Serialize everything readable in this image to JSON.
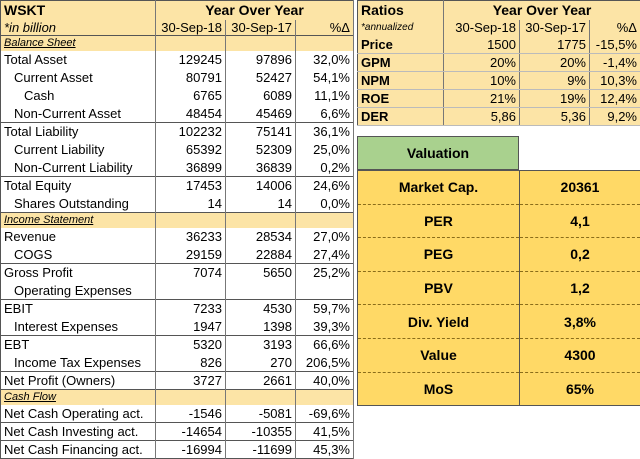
{
  "left": {
    "title": "WSKT",
    "yoy": "Year Over Year",
    "note": "*in billion",
    "col1": "30-Sep-18",
    "col2": "30-Sep-17",
    "col3": "%Δ",
    "sections": [
      {
        "heading": "Balance Sheet",
        "rows": [
          {
            "label": "Total Asset",
            "indent": 0,
            "v1": "129245",
            "v2": "97896",
            "pct": "32,0%"
          },
          {
            "label": "Current Asset",
            "indent": 1,
            "v1": "80791",
            "v2": "52427",
            "pct": "54,1%"
          },
          {
            "label": "Cash",
            "indent": 2,
            "v1": "6765",
            "v2": "6089",
            "pct": "11,1%"
          },
          {
            "label": "Non-Current Asset",
            "indent": 1,
            "v1": "48454",
            "v2": "45469",
            "pct": "6,6%"
          },
          {
            "label": "Total Liability",
            "indent": 0,
            "v1": "102232",
            "v2": "75141",
            "pct": "36,1%"
          },
          {
            "label": "Current Liability",
            "indent": 1,
            "v1": "65392",
            "v2": "52309",
            "pct": "25,0%"
          },
          {
            "label": "Non-Current Liability",
            "indent": 1,
            "v1": "36899",
            "v2": "36839",
            "pct": "0,2%"
          },
          {
            "label": "Total Equity",
            "indent": 0,
            "v1": "17453",
            "v2": "14006",
            "pct": "24,6%"
          },
          {
            "label": "Shares Outstanding",
            "indent": 1,
            "v1": "14",
            "v2": "14",
            "pct": "0,0%"
          }
        ]
      },
      {
        "heading": "Income Statement",
        "rows": [
          {
            "label": "Revenue",
            "indent": 0,
            "v1": "36233",
            "v2": "28534",
            "pct": "27,0%"
          },
          {
            "label": "COGS",
            "indent": 1,
            "v1": "29159",
            "v2": "22884",
            "pct": "27,4%"
          },
          {
            "label": "Gross Profit",
            "indent": 0,
            "v1": "7074",
            "v2": "5650",
            "pct": "25,2%"
          },
          {
            "label": "Operating Expenses",
            "indent": 1,
            "v1": "",
            "v2": "",
            "pct": ""
          },
          {
            "label": "EBIT",
            "indent": 0,
            "v1": "7233",
            "v2": "4530",
            "pct": "59,7%"
          },
          {
            "label": "Interest Expenses",
            "indent": 1,
            "v1": "1947",
            "v2": "1398",
            "pct": "39,3%"
          },
          {
            "label": "EBT",
            "indent": 0,
            "v1": "5320",
            "v2": "3193",
            "pct": "66,6%"
          },
          {
            "label": "Income Tax Expenses",
            "indent": 1,
            "v1": "826",
            "v2": "270",
            "pct": "206,5%"
          },
          {
            "label": "Net Profit (Owners)",
            "indent": 0,
            "v1": "3727",
            "v2": "2661",
            "pct": "40,0%"
          }
        ]
      },
      {
        "heading": "Cash Flow",
        "rows": [
          {
            "label": "Net Cash Operating act.",
            "indent": 0,
            "v1": "-1546",
            "v2": "-5081",
            "pct": "-69,6%"
          },
          {
            "label": "Net Cash Investing act.",
            "indent": 0,
            "v1": "-14654",
            "v2": "-10355",
            "pct": "41,5%"
          },
          {
            "label": "Net Cash Financing act.",
            "indent": 0,
            "v1": "-16994",
            "v2": "-11699",
            "pct": "45,3%"
          }
        ]
      }
    ]
  },
  "ratios": {
    "title": "Ratios",
    "yoy": "Year Over Year",
    "note": "*annualized",
    "col1": "30-Sep-18",
    "col2": "30-Sep-17",
    "col3": "%Δ",
    "rows": [
      {
        "label": "Price",
        "v1": "1500",
        "v2": "1775",
        "pct": "-15,5%"
      },
      {
        "label": "GPM",
        "v1": "20%",
        "v2": "20%",
        "pct": "-1,4%"
      },
      {
        "label": "NPM",
        "v1": "10%",
        "v2": "9%",
        "pct": "10,3%"
      },
      {
        "label": "ROE",
        "v1": "21%",
        "v2": "19%",
        "pct": "12,4%"
      },
      {
        "label": "DER",
        "v1": "5,86",
        "v2": "5,36",
        "pct": "9,2%"
      }
    ]
  },
  "valuation": {
    "title": "Valuation",
    "rows": [
      {
        "label": "Market Cap.",
        "value": "20361"
      },
      {
        "label": "PER",
        "value": "4,1"
      },
      {
        "label": "PEG",
        "value": "0,2"
      },
      {
        "label": "PBV",
        "value": "1,2"
      },
      {
        "label": "Div. Yield",
        "value": "3,8%"
      },
      {
        "label": "Value",
        "value": "4300"
      },
      {
        "label": "MoS",
        "value": "65%"
      }
    ]
  }
}
